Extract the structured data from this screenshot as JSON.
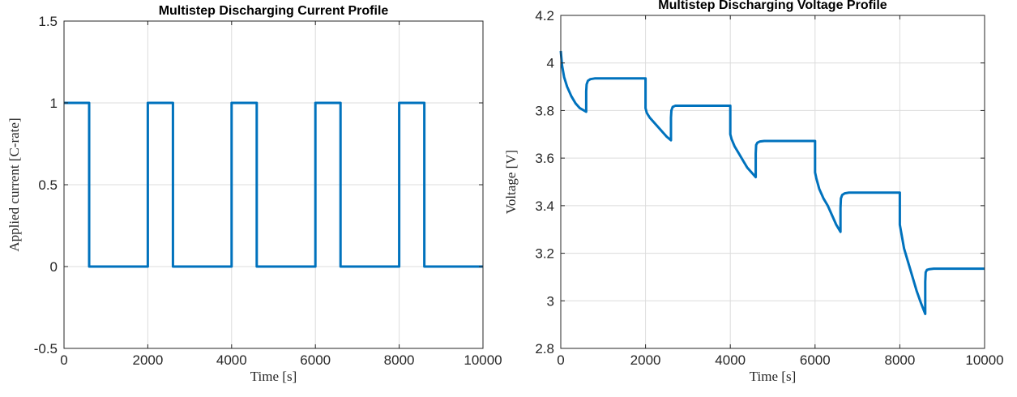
{
  "chart_data": [
    {
      "type": "line",
      "title": "Multistep Discharging Current Profile",
      "xlabel": "Time [s]",
      "ylabel": "Applied current [C-rate]",
      "xlim": [
        0,
        10000
      ],
      "ylim": [
        -0.5,
        1.5
      ],
      "xticks": [
        "0",
        "2000",
        "4000",
        "6000",
        "8000",
        "10000"
      ],
      "yticks": [
        "-0.5",
        "0",
        "0.5",
        "1",
        "1.5"
      ],
      "grid": true,
      "line_color": "#0072BD",
      "series": [
        {
          "x": [
            0,
            600,
            600,
            2000,
            2000,
            2600,
            2600,
            4000,
            4000,
            4600,
            4600,
            6000,
            6000,
            6600,
            6600,
            8000,
            8000,
            8600,
            8600,
            10000
          ],
          "y": [
            1,
            1,
            0,
            0,
            1,
            1,
            0,
            0,
            1,
            1,
            0,
            0,
            1,
            1,
            0,
            0,
            1,
            1,
            0,
            0
          ]
        }
      ]
    },
    {
      "type": "line",
      "title": "Multistep Discharging Voltage Profile",
      "xlabel": "Time [s]",
      "ylabel": "Voltage [V]",
      "xlim": [
        0,
        10000
      ],
      "ylim": [
        2.8,
        4.2
      ],
      "xticks": [
        "0",
        "2000",
        "4000",
        "6000",
        "8000",
        "10000"
      ],
      "yticks": [
        "2.8",
        "3",
        "3.2",
        "3.4",
        "3.6",
        "3.8",
        "4",
        "4.2"
      ],
      "grid": true,
      "line_color": "#0072BD",
      "series": [
        {
          "x": [
            0,
            30,
            80,
            150,
            250,
            350,
            450,
            600,
            600,
            610,
            640,
            700,
            800,
            2000,
            2000,
            2030,
            2100,
            2200,
            2300,
            2400,
            2500,
            2600,
            2600,
            2610,
            2640,
            2700,
            2800,
            4000,
            4000,
            4030,
            4100,
            4200,
            4300,
            4400,
            4500,
            4600,
            4600,
            4610,
            4640,
            4700,
            4800,
            6000,
            6000,
            6030,
            6100,
            6200,
            6300,
            6400,
            6500,
            6600,
            6600,
            6610,
            6640,
            6700,
            6800,
            8000,
            8000,
            8030,
            8100,
            8200,
            8300,
            8400,
            8500,
            8600,
            8600,
            8610,
            8640,
            8700,
            8800,
            10000
          ],
          "y": [
            4.05,
            3.99,
            3.94,
            3.9,
            3.86,
            3.83,
            3.81,
            3.795,
            3.88,
            3.91,
            3.925,
            3.932,
            3.935,
            3.935,
            3.81,
            3.79,
            3.77,
            3.75,
            3.73,
            3.71,
            3.69,
            3.675,
            3.77,
            3.8,
            3.815,
            3.82,
            3.82,
            3.82,
            3.7,
            3.68,
            3.65,
            3.62,
            3.59,
            3.56,
            3.54,
            3.52,
            3.62,
            3.655,
            3.665,
            3.67,
            3.672,
            3.672,
            3.54,
            3.515,
            3.47,
            3.43,
            3.4,
            3.36,
            3.32,
            3.29,
            3.39,
            3.43,
            3.445,
            3.452,
            3.455,
            3.455,
            3.32,
            3.29,
            3.22,
            3.16,
            3.1,
            3.04,
            2.99,
            2.945,
            3.08,
            3.12,
            3.13,
            3.133,
            3.135,
            3.135
          ]
        }
      ]
    }
  ]
}
